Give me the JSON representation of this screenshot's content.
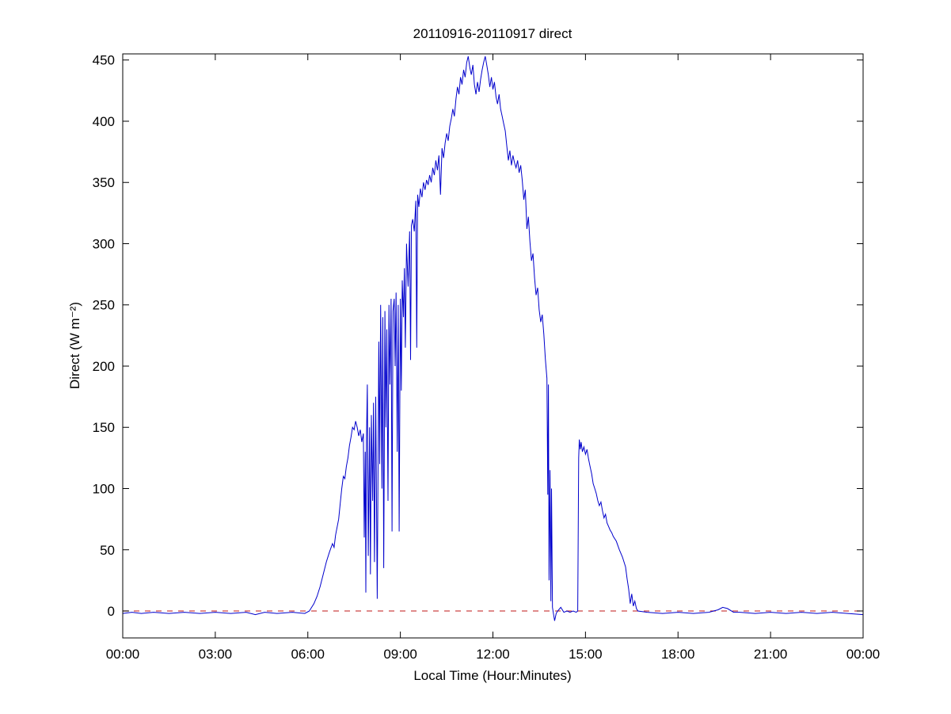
{
  "chart_data": {
    "type": "line",
    "title": "20110916-20110917 direct",
    "xlabel": "Local Time (Hour:Minutes)",
    "ylabel": "Direct (W m⁻²)",
    "xlim": [
      0,
      24
    ],
    "ylim": [
      -22,
      455
    ],
    "xticks": [
      0,
      3,
      6,
      9,
      12,
      15,
      18,
      21,
      24
    ],
    "xtick_labels": [
      "00:00",
      "03:00",
      "06:00",
      "09:00",
      "12:00",
      "15:00",
      "18:00",
      "21:00",
      "00:00"
    ],
    "yticks": [
      0,
      50,
      100,
      150,
      200,
      250,
      300,
      350,
      400,
      450
    ],
    "ytick_labels": [
      "0",
      "50",
      "100",
      "150",
      "200",
      "250",
      "300",
      "350",
      "400",
      "450"
    ],
    "grid": false,
    "legend": null,
    "line_color": "#0000cc",
    "axis_color": "#000000",
    "zero_line": {
      "y": 0,
      "color": "#cc4444",
      "style": "dashed"
    },
    "series": [
      {
        "name": "direct",
        "points": [
          [
            0,
            -2
          ],
          [
            0.3,
            -1
          ],
          [
            0.6,
            -2
          ],
          [
            1,
            -1
          ],
          [
            1.5,
            -2
          ],
          [
            2,
            -1
          ],
          [
            2.5,
            -2
          ],
          [
            3,
            -1
          ],
          [
            3.5,
            -2
          ],
          [
            4,
            -1
          ],
          [
            4.3,
            -3
          ],
          [
            4.6,
            -1
          ],
          [
            5,
            -2
          ],
          [
            5.5,
            -1
          ],
          [
            5.9,
            -2
          ],
          [
            6.05,
            0
          ],
          [
            6.1,
            2
          ],
          [
            6.2,
            6
          ],
          [
            6.3,
            12
          ],
          [
            6.4,
            20
          ],
          [
            6.5,
            30
          ],
          [
            6.6,
            40
          ],
          [
            6.7,
            48
          ],
          [
            6.8,
            55
          ],
          [
            6.85,
            52
          ],
          [
            6.9,
            62
          ],
          [
            7,
            75
          ],
          [
            7.05,
            88
          ],
          [
            7.1,
            100
          ],
          [
            7.15,
            110
          ],
          [
            7.2,
            108
          ],
          [
            7.25,
            118
          ],
          [
            7.3,
            125
          ],
          [
            7.35,
            135
          ],
          [
            7.4,
            142
          ],
          [
            7.45,
            150
          ],
          [
            7.5,
            148
          ],
          [
            7.55,
            155
          ],
          [
            7.6,
            150
          ],
          [
            7.65,
            143
          ],
          [
            7.7,
            148
          ],
          [
            7.75,
            138
          ],
          [
            7.8,
            145
          ],
          [
            7.83,
            60
          ],
          [
            7.86,
            130
          ],
          [
            7.88,
            15
          ],
          [
            7.9,
            140
          ],
          [
            7.93,
            185
          ],
          [
            7.96,
            45
          ],
          [
            8,
            150
          ],
          [
            8.03,
            30
          ],
          [
            8.06,
            160
          ],
          [
            8.1,
            90
          ],
          [
            8.13,
            170
          ],
          [
            8.16,
            40
          ],
          [
            8.2,
            175
          ],
          [
            8.25,
            10
          ],
          [
            8.3,
            220
          ],
          [
            8.33,
            120
          ],
          [
            8.36,
            250
          ],
          [
            8.4,
            100
          ],
          [
            8.43,
            240
          ],
          [
            8.46,
            35
          ],
          [
            8.5,
            245
          ],
          [
            8.53,
            150
          ],
          [
            8.56,
            230
          ],
          [
            8.6,
            90
          ],
          [
            8.63,
            250
          ],
          [
            8.66,
            185
          ],
          [
            8.7,
            255
          ],
          [
            8.73,
            65
          ],
          [
            8.76,
            245
          ],
          [
            8.8,
            255
          ],
          [
            8.83,
            200
          ],
          [
            8.86,
            260
          ],
          [
            8.9,
            130
          ],
          [
            8.93,
            250
          ],
          [
            8.96,
            65
          ],
          [
            9,
            255
          ],
          [
            9.03,
            180
          ],
          [
            9.06,
            270
          ],
          [
            9.1,
            240
          ],
          [
            9.13,
            280
          ],
          [
            9.16,
            215
          ],
          [
            9.2,
            300
          ],
          [
            9.25,
            265
          ],
          [
            9.3,
            310
          ],
          [
            9.33,
            205
          ],
          [
            9.36,
            315
          ],
          [
            9.4,
            320
          ],
          [
            9.45,
            310
          ],
          [
            9.5,
            335
          ],
          [
            9.53,
            215
          ],
          [
            9.56,
            340
          ],
          [
            9.6,
            330
          ],
          [
            9.65,
            345
          ],
          [
            9.7,
            338
          ],
          [
            9.75,
            350
          ],
          [
            9.8,
            344
          ],
          [
            9.85,
            352
          ],
          [
            9.9,
            348
          ],
          [
            9.95,
            356
          ],
          [
            10,
            350
          ],
          [
            10.05,
            362
          ],
          [
            10.1,
            356
          ],
          [
            10.15,
            368
          ],
          [
            10.2,
            360
          ],
          [
            10.25,
            372
          ],
          [
            10.3,
            340
          ],
          [
            10.35,
            378
          ],
          [
            10.4,
            370
          ],
          [
            10.45,
            382
          ],
          [
            10.5,
            390
          ],
          [
            10.55,
            384
          ],
          [
            10.6,
            396
          ],
          [
            10.65,
            402
          ],
          [
            10.7,
            410
          ],
          [
            10.75,
            404
          ],
          [
            10.8,
            418
          ],
          [
            10.85,
            428
          ],
          [
            10.9,
            422
          ],
          [
            10.95,
            436
          ],
          [
            11,
            430
          ],
          [
            11.05,
            442
          ],
          [
            11.1,
            436
          ],
          [
            11.15,
            448
          ],
          [
            11.2,
            453
          ],
          [
            11.25,
            444
          ],
          [
            11.3,
            438
          ],
          [
            11.35,
            446
          ],
          [
            11.4,
            430
          ],
          [
            11.45,
            422
          ],
          [
            11.5,
            432
          ],
          [
            11.55,
            424
          ],
          [
            11.6,
            434
          ],
          [
            11.65,
            442
          ],
          [
            11.7,
            448
          ],
          [
            11.75,
            453
          ],
          [
            11.8,
            446
          ],
          [
            11.85,
            438
          ],
          [
            11.9,
            428
          ],
          [
            11.95,
            436
          ],
          [
            12,
            426
          ],
          [
            12.05,
            432
          ],
          [
            12.1,
            420
          ],
          [
            12.15,
            414
          ],
          [
            12.2,
            422
          ],
          [
            12.25,
            410
          ],
          [
            12.3,
            404
          ],
          [
            12.35,
            398
          ],
          [
            12.4,
            392
          ],
          [
            12.45,
            380
          ],
          [
            12.5,
            368
          ],
          [
            12.55,
            376
          ],
          [
            12.6,
            364
          ],
          [
            12.65,
            372
          ],
          [
            12.7,
            366
          ],
          [
            12.75,
            362
          ],
          [
            12.8,
            368
          ],
          [
            12.85,
            358
          ],
          [
            12.9,
            364
          ],
          [
            12.95,
            352
          ],
          [
            13,
            336
          ],
          [
            13.05,
            344
          ],
          [
            13.1,
            312
          ],
          [
            13.15,
            322
          ],
          [
            13.2,
            302
          ],
          [
            13.25,
            286
          ],
          [
            13.3,
            292
          ],
          [
            13.35,
            272
          ],
          [
            13.4,
            258
          ],
          [
            13.45,
            264
          ],
          [
            13.5,
            246
          ],
          [
            13.55,
            236
          ],
          [
            13.6,
            242
          ],
          [
            13.65,
            226
          ],
          [
            13.7,
            206
          ],
          [
            13.75,
            190
          ],
          [
            13.78,
            95
          ],
          [
            13.8,
            185
          ],
          [
            13.82,
            25
          ],
          [
            13.85,
            115
          ],
          [
            13.88,
            8
          ],
          [
            13.9,
            100
          ],
          [
            13.93,
            3
          ],
          [
            13.96,
            -2
          ],
          [
            14,
            -8
          ],
          [
            14.05,
            -2
          ],
          [
            14.1,
            0
          ],
          [
            14.2,
            3
          ],
          [
            14.3,
            -1
          ],
          [
            14.4,
            0
          ],
          [
            14.5,
            -1
          ],
          [
            14.6,
            0
          ],
          [
            14.7,
            -1
          ],
          [
            14.75,
            0
          ],
          [
            14.78,
            125
          ],
          [
            14.8,
            140
          ],
          [
            14.83,
            132
          ],
          [
            14.86,
            138
          ],
          [
            14.9,
            130
          ],
          [
            14.95,
            134
          ],
          [
            15,
            128
          ],
          [
            15.05,
            132
          ],
          [
            15.1,
            124
          ],
          [
            15.15,
            118
          ],
          [
            15.2,
            112
          ],
          [
            15.25,
            104
          ],
          [
            15.3,
            100
          ],
          [
            15.35,
            96
          ],
          [
            15.4,
            90
          ],
          [
            15.45,
            86
          ],
          [
            15.5,
            89
          ],
          [
            15.55,
            82
          ],
          [
            15.6,
            76
          ],
          [
            15.65,
            79
          ],
          [
            15.7,
            72
          ],
          [
            15.75,
            69
          ],
          [
            15.8,
            66
          ],
          [
            15.85,
            64
          ],
          [
            15.9,
            61
          ],
          [
            16,
            57
          ],
          [
            16.1,
            50
          ],
          [
            16.2,
            44
          ],
          [
            16.3,
            36
          ],
          [
            16.35,
            26
          ],
          [
            16.4,
            18
          ],
          [
            16.45,
            6
          ],
          [
            16.5,
            14
          ],
          [
            16.55,
            4
          ],
          [
            16.6,
            8
          ],
          [
            16.65,
            2
          ],
          [
            16.7,
            0
          ],
          [
            17,
            -1
          ],
          [
            17.5,
            -2
          ],
          [
            18,
            -1
          ],
          [
            18.5,
            -2
          ],
          [
            19,
            -1
          ],
          [
            19.3,
            1
          ],
          [
            19.45,
            3
          ],
          [
            19.6,
            2
          ],
          [
            19.8,
            -1
          ],
          [
            20,
            -1
          ],
          [
            20.5,
            -2
          ],
          [
            21,
            -1
          ],
          [
            21.5,
            -2
          ],
          [
            22,
            -1
          ],
          [
            22.5,
            -2
          ],
          [
            23,
            -1
          ],
          [
            23.5,
            -2
          ],
          [
            24,
            -3
          ]
        ]
      }
    ]
  }
}
